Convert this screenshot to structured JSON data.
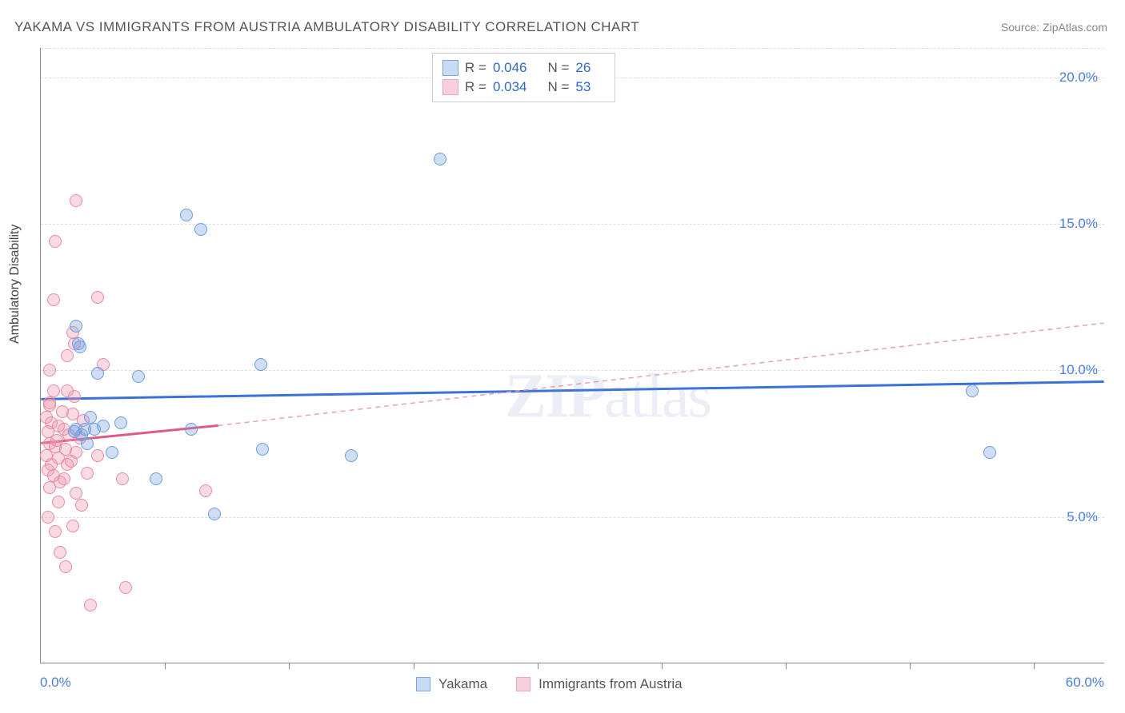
{
  "title": "YAKAMA VS IMMIGRANTS FROM AUSTRIA AMBULATORY DISABILITY CORRELATION CHART",
  "source": "Source: ZipAtlas.com",
  "yaxis_title": "Ambulatory Disability",
  "watermark_a": "ZIP",
  "watermark_b": "atlas",
  "chart": {
    "type": "scatter",
    "xlim": [
      0,
      60
    ],
    "ylim": [
      0,
      21
    ],
    "yticks": [
      5,
      10,
      15,
      20
    ],
    "ytick_labels": [
      "5.0%",
      "10.0%",
      "15.0%",
      "20.0%"
    ],
    "xticks": [
      7,
      14,
      21,
      28,
      35,
      42,
      49,
      56
    ],
    "xlabel_min": "0.0%",
    "xlabel_max": "60.0%",
    "background_color": "#ffffff",
    "grid_color": "#dddddd",
    "axis_color": "#888888",
    "point_radius": 8,
    "series": [
      {
        "name": "Yakama",
        "fill": "rgba(120,160,220,0.35)",
        "stroke": "#6a9de8",
        "swatch_fill": "#c7dbf5",
        "swatch_stroke": "#7aa8e0",
        "R": "0.046",
        "N": "26",
        "trend": {
          "x1": 0,
          "y1": 9.0,
          "x2": 60,
          "y2": 9.6,
          "color": "#3a72d8",
          "width": 3,
          "dash": "none"
        },
        "trend_ext": null,
        "points": [
          [
            2.0,
            11.5
          ],
          [
            2.1,
            10.9
          ],
          [
            2.2,
            10.8
          ],
          [
            8.2,
            15.3
          ],
          [
            9.0,
            14.8
          ],
          [
            3.2,
            9.9
          ],
          [
            5.5,
            9.8
          ],
          [
            12.4,
            10.2
          ],
          [
            2.0,
            8.0
          ],
          [
            3.0,
            8.0
          ],
          [
            4.5,
            8.2
          ],
          [
            8.5,
            8.0
          ],
          [
            4.0,
            7.2
          ],
          [
            12.5,
            7.3
          ],
          [
            17.5,
            7.1
          ],
          [
            6.5,
            6.3
          ],
          [
            9.8,
            5.1
          ],
          [
            22.5,
            17.2
          ],
          [
            52.5,
            9.3
          ],
          [
            53.5,
            7.2
          ],
          [
            2.3,
            7.8
          ],
          [
            2.5,
            8.0
          ],
          [
            2.6,
            7.5
          ],
          [
            1.9,
            7.9
          ],
          [
            3.5,
            8.1
          ],
          [
            2.8,
            8.4
          ]
        ]
      },
      {
        "name": "Immigrants from Austria",
        "fill": "rgba(240,150,170,0.35)",
        "stroke": "#e88aa5",
        "swatch_fill": "#f8d0db",
        "swatch_stroke": "#eda5ba",
        "R": "0.034",
        "N": "53",
        "trend": {
          "x1": 0,
          "y1": 7.5,
          "x2": 10,
          "y2": 8.1,
          "color": "#e05a85",
          "width": 3,
          "dash": "none"
        },
        "trend_ext": {
          "x1": 10,
          "y1": 8.1,
          "x2": 60,
          "y2": 11.6,
          "color": "#e8a0b5",
          "width": 1.5,
          "dash": "6,5"
        },
        "points": [
          [
            2.0,
            15.8
          ],
          [
            0.8,
            14.4
          ],
          [
            3.2,
            12.5
          ],
          [
            0.7,
            12.4
          ],
          [
            1.8,
            11.3
          ],
          [
            1.9,
            10.9
          ],
          [
            1.5,
            10.5
          ],
          [
            3.5,
            10.2
          ],
          [
            0.5,
            10.0
          ],
          [
            0.7,
            9.3
          ],
          [
            1.5,
            9.3
          ],
          [
            0.5,
            8.8
          ],
          [
            1.2,
            8.6
          ],
          [
            1.8,
            8.5
          ],
          [
            0.3,
            8.4
          ],
          [
            0.6,
            8.2
          ],
          [
            1.0,
            8.1
          ],
          [
            1.3,
            8.0
          ],
          [
            0.4,
            7.9
          ],
          [
            1.6,
            7.8
          ],
          [
            2.2,
            7.7
          ],
          [
            0.5,
            7.5
          ],
          [
            0.8,
            7.4
          ],
          [
            1.4,
            7.3
          ],
          [
            2.0,
            7.2
          ],
          [
            0.3,
            7.1
          ],
          [
            3.2,
            7.1
          ],
          [
            1.0,
            7.0
          ],
          [
            1.5,
            6.8
          ],
          [
            0.4,
            6.6
          ],
          [
            2.6,
            6.5
          ],
          [
            0.7,
            6.4
          ],
          [
            1.3,
            6.3
          ],
          [
            1.1,
            6.2
          ],
          [
            4.6,
            6.3
          ],
          [
            0.5,
            6.0
          ],
          [
            2.0,
            5.8
          ],
          [
            9.3,
            5.9
          ],
          [
            1.0,
            5.5
          ],
          [
            2.3,
            5.4
          ],
          [
            0.4,
            5.0
          ],
          [
            1.8,
            4.7
          ],
          [
            0.8,
            4.5
          ],
          [
            1.1,
            3.8
          ],
          [
            1.4,
            3.3
          ],
          [
            4.8,
            2.6
          ],
          [
            2.8,
            2.0
          ],
          [
            0.5,
            8.9
          ],
          [
            1.9,
            9.1
          ],
          [
            0.9,
            7.6
          ],
          [
            1.7,
            6.9
          ],
          [
            2.4,
            8.3
          ],
          [
            0.6,
            6.8
          ]
        ]
      }
    ]
  },
  "legend_top": {
    "r_label": "R =",
    "n_label": "N ="
  },
  "legend_bottom": {
    "items": [
      "Yakama",
      "Immigrants from Austria"
    ]
  }
}
